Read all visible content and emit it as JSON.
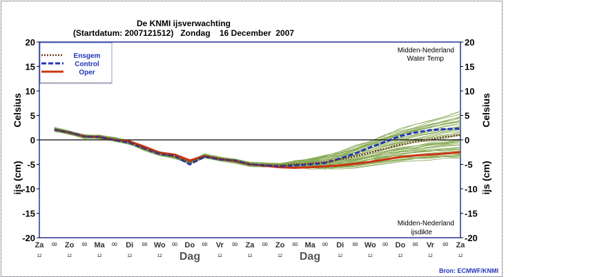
{
  "chart_data": {
    "type": "line",
    "title": "De KNMI ijsverwachting",
    "subtitle": "(Startdatum: 2007121512)   Zondag    16 December  2007",
    "ylabel_top": "Celsius",
    "ylabel_bottom": "ijs (cm)",
    "xlabel": "Dag",
    "ylim": [
      -20,
      20
    ],
    "yticks": [
      20,
      15,
      10,
      5,
      0,
      -5,
      -10,
      -15,
      -20
    ],
    "xticks": [
      "Za",
      "Zo",
      "Ma",
      "Di",
      "Wo",
      "Do",
      "Vr",
      "Za",
      "Zo",
      "Ma",
      "Di",
      "Wo",
      "Do",
      "Vr",
      "Za"
    ],
    "xtick_sub": "12",
    "xtick_mid": "00",
    "annotation_top": [
      "Midden-Nederland",
      "Water Temp"
    ],
    "annotation_bottom": [
      "Midden-Nederland",
      "ijsdikte"
    ],
    "source": "Bron: ECMWF/KNMI",
    "grid": false,
    "zero_line": true,
    "legend_position": "top-left",
    "x_days": [
      0.5,
      1,
      1.5,
      2,
      2.5,
      3,
      3.5,
      4,
      4.5,
      5,
      5.5,
      6,
      6.5,
      7,
      7.5,
      8,
      8.5,
      9,
      9.5,
      10,
      10.5,
      11,
      11.5,
      12,
      12.5,
      13,
      13.5,
      14
    ],
    "series": [
      {
        "name": "Ensgem",
        "color": "#6b3a1a",
        "style": "dotted",
        "values": [
          2.1,
          1.5,
          0.7,
          0.6,
          0.1,
          -0.5,
          -1.8,
          -2.8,
          -3.4,
          -4.6,
          -3.3,
          -3.9,
          -4.3,
          -5.0,
          -5.1,
          -5.2,
          -5.0,
          -4.8,
          -4.5,
          -4.0,
          -3.4,
          -2.6,
          -1.8,
          -1.0,
          -0.4,
          0.1,
          0.6,
          1.0
        ]
      },
      {
        "name": "Control",
        "color": "#2233bb",
        "style": "dashed",
        "values": [
          2.1,
          1.5,
          0.7,
          0.6,
          0.0,
          -0.6,
          -1.8,
          -2.9,
          -3.3,
          -5.0,
          -3.4,
          -4.0,
          -4.2,
          -5.0,
          -5.2,
          -5.4,
          -5.2,
          -5.0,
          -4.7,
          -3.8,
          -2.8,
          -1.5,
          -0.4,
          0.8,
          1.5,
          2.0,
          2.2,
          2.3
        ]
      },
      {
        "name": "Oper",
        "color": "#cc3311",
        "style": "solid",
        "values": [
          2.1,
          1.5,
          0.7,
          0.6,
          0.0,
          -0.3,
          -1.4,
          -2.6,
          -3.0,
          -4.2,
          -3.3,
          -3.9,
          -4.3,
          -5.0,
          -5.3,
          -5.6,
          -5.7,
          -5.6,
          -5.4,
          -5.2,
          -4.9,
          -4.5,
          -4.0,
          -3.5,
          -3.2,
          -3.0,
          -2.8,
          -2.5
        ]
      }
    ],
    "ensemble_color": "#88aa55"
  }
}
